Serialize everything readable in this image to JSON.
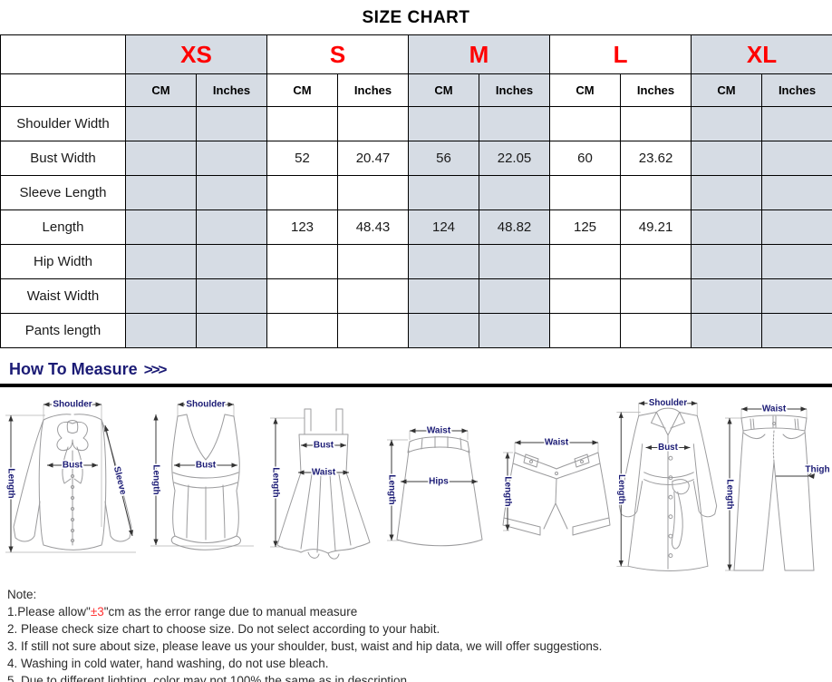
{
  "title": "SIZE CHART",
  "colors": {
    "accent_red": "#ff0000",
    "navy": "#1b1b75",
    "shade": "#d6dce4"
  },
  "table": {
    "sizes": [
      "XS",
      "S",
      "M",
      "L",
      "XL"
    ],
    "unit_headers": [
      "CM",
      "Inches"
    ],
    "rows": [
      {
        "label": "Shoulder Width",
        "values": [
          "",
          "",
          "",
          "",
          "",
          "",
          "",
          "",
          "",
          ""
        ]
      },
      {
        "label": "Bust Width",
        "values": [
          "",
          "",
          "52",
          "20.47",
          "56",
          "22.05",
          "60",
          "23.62",
          "",
          ""
        ]
      },
      {
        "label": "Sleeve Length",
        "values": [
          "",
          "",
          "",
          "",
          "",
          "",
          "",
          "",
          "",
          ""
        ]
      },
      {
        "label": "Length",
        "values": [
          "",
          "",
          "123",
          "48.43",
          "124",
          "48.82",
          "125",
          "49.21",
          "",
          ""
        ]
      },
      {
        "label": "Hip Width",
        "values": [
          "",
          "",
          "",
          "",
          "",
          "",
          "",
          "",
          "",
          ""
        ]
      },
      {
        "label": "Waist Width",
        "values": [
          "",
          "",
          "",
          "",
          "",
          "",
          "",
          "",
          "",
          ""
        ]
      },
      {
        "label": "Pants length",
        "values": [
          "",
          "",
          "",
          "",
          "",
          "",
          "",
          "",
          "",
          ""
        ]
      }
    ]
  },
  "measure": {
    "heading": "How To Measure",
    "chevrons": ">>>",
    "figures": [
      {
        "name": "blouse",
        "labels": {
          "shoulder": "Shoulder",
          "length": "Length",
          "bust": "Bust",
          "sleeve": "Sleeve"
        }
      },
      {
        "name": "tank-top",
        "labels": {
          "shoulder": "Shoulder",
          "length": "Length",
          "bust": "Bust"
        }
      },
      {
        "name": "dress",
        "labels": {
          "length": "Length",
          "bust": "Bust",
          "waist": "Waist"
        }
      },
      {
        "name": "skirt",
        "labels": {
          "waist": "Waist",
          "length": "Length",
          "hips": "Hips"
        }
      },
      {
        "name": "shorts",
        "labels": {
          "waist": "Waist",
          "length": "Length"
        }
      },
      {
        "name": "coat",
        "labels": {
          "shoulder": "Shoulder",
          "length": "Length",
          "bust": "Bust"
        }
      },
      {
        "name": "pants",
        "labels": {
          "waist": "Waist",
          "length": "Length",
          "thigh": "Thigh"
        }
      }
    ]
  },
  "notes": {
    "heading": "Note:",
    "line1": {
      "prefix": "1.Please allow\"",
      "red": "±3",
      "suffix": "\"cm as the error range due to manual measure"
    },
    "items": [
      "2. Please check size chart to choose size. Do not select according to your habit.",
      "3. If still not sure about size, please leave us your shoulder, bust, waist and hip data, we will offer suggestions.",
      "4. Washing in cold water, hand washing, do not use bleach.",
      "5. Due to different lighting, color may not 100% the same as in description."
    ]
  }
}
